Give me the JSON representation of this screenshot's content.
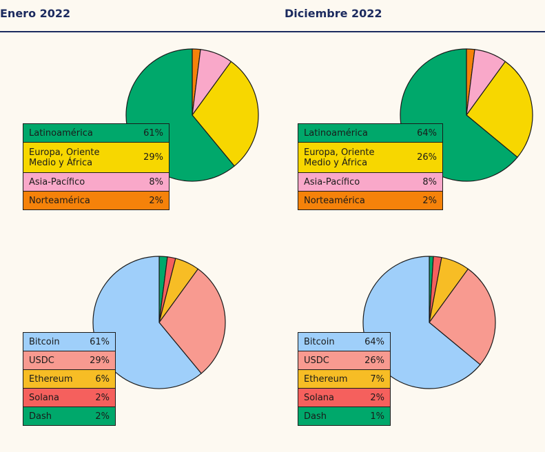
{
  "headers": {
    "left": "Enero 2022",
    "right": "Diciembre 2022"
  },
  "chart_data": [
    {
      "type": "pie",
      "title": "Enero 2022",
      "categories": [
        "Latinoamérica",
        "Europa, Oriente Medio y África",
        "Asia-Pacífico",
        "Norteamérica"
      ],
      "labels_display": [
        "Latinoamérica",
        "Europa, Oriente\nMedio y África",
        "Asia-Pacífico",
        "Norteamérica"
      ],
      "values": [
        61,
        29,
        8,
        2
      ],
      "labels_text": [
        "61%",
        "29%",
        "8%",
        "2%"
      ],
      "colors": [
        "#00a86b",
        "#f7d700",
        "#f9a8c9",
        "#f5820a"
      ]
    },
    {
      "type": "pie",
      "title": "Diciembre 2022",
      "categories": [
        "Latinoamérica",
        "Europa, Oriente Medio y África",
        "Asia-Pacífico",
        "Norteamérica"
      ],
      "labels_display": [
        "Latinoamérica",
        "Europa, Oriente\nMedio y África",
        "Asia-Pacífico",
        "Norteamérica"
      ],
      "values": [
        64,
        26,
        8,
        2
      ],
      "labels_text": [
        "64%",
        "26%",
        "8%",
        "2%"
      ],
      "colors": [
        "#00a86b",
        "#f7d700",
        "#f9a8c9",
        "#f5820a"
      ]
    },
    {
      "type": "pie",
      "title": "Enero 2022",
      "categories": [
        "Bitcoin",
        "USDC",
        "Ethereum",
        "Solana",
        "Dash"
      ],
      "labels_display": [
        "Bitcoin",
        "USDC",
        "Ethereum",
        "Solana",
        "Dash"
      ],
      "values": [
        61,
        29,
        6,
        2,
        2
      ],
      "labels_text": [
        "61%",
        "29%",
        "6%",
        "2%",
        "2%"
      ],
      "colors": [
        "#9fcffa",
        "#f89a90",
        "#f7bd25",
        "#f5605d",
        "#00a86b"
      ]
    },
    {
      "type": "pie",
      "title": "Diciembre 2022",
      "categories": [
        "Bitcoin",
        "USDC",
        "Ethereum",
        "Solana",
        "Dash"
      ],
      "labels_display": [
        "Bitcoin",
        "USDC",
        "Ethereum",
        "Solana",
        "Dash"
      ],
      "values": [
        64,
        26,
        7,
        2,
        1
      ],
      "labels_text": [
        "64%",
        "26%",
        "7%",
        "2%",
        "1%"
      ],
      "colors": [
        "#9fcffa",
        "#f89a90",
        "#f7bd25",
        "#f5605d",
        "#00a86b"
      ]
    }
  ]
}
